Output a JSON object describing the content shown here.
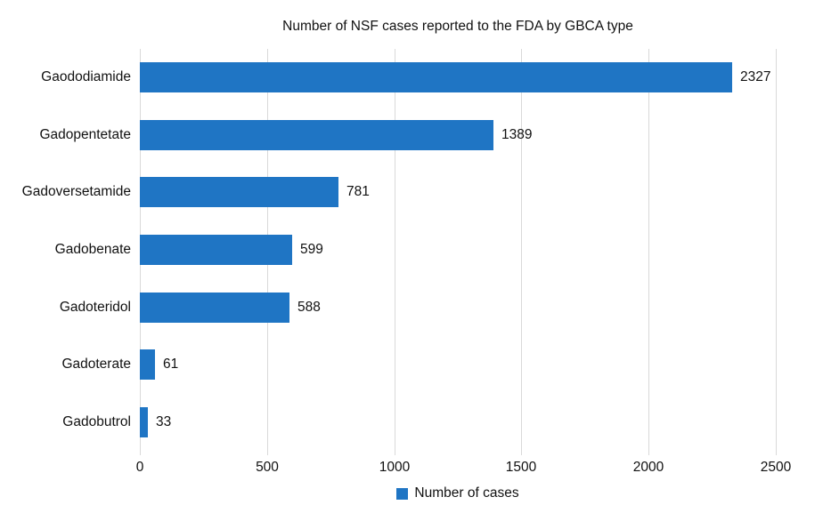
{
  "title": "Number of NSF cases reported to the FDA by GBCA type",
  "legend": {
    "label": "Number of cases"
  },
  "colors": {
    "bar": "#1f75c4",
    "gridline": "#d9d9d9",
    "text": "#111111",
    "background": "#ffffff"
  },
  "chart_data": {
    "type": "bar",
    "orientation": "horizontal",
    "title": "Number of NSF cases reported to the FDA by GBCA type",
    "categories": [
      "Gaododiamide",
      "Gadopentetate",
      "Gadoversetamide",
      "Gadobenate",
      "Gadoteridol",
      "Gadoterate",
      "Gadobutrol"
    ],
    "values": [
      2327,
      1389,
      781,
      599,
      588,
      61,
      33
    ],
    "data_labels": [
      2327,
      1389,
      781,
      599,
      588,
      61,
      33
    ],
    "xlabel": "",
    "ylabel": "",
    "xlim": [
      0,
      2500
    ],
    "xticks": [
      0,
      500,
      1000,
      1500,
      2000,
      2500
    ],
    "grid": true,
    "legend_entries": [
      "Number of cases"
    ],
    "legend_position": "bottom",
    "bar_color": "#1f75c4"
  }
}
